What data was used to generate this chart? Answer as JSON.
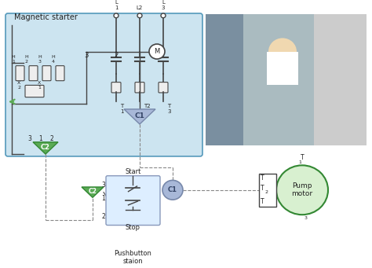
{
  "bg_color": "#ffffff",
  "diagram_bg": "#cce4f0",
  "diagram_label": "Magnetic starter",
  "arrow_color": "#a8b8d8",
  "green_color": "#5aaa55",
  "line_color": "#444444",
  "dashed_color": "#888888",
  "text_color": "#222222",
  "L_labels": [
    "L\n1",
    "L2",
    "L\n3"
  ],
  "T_labels": [
    "T\n1",
    "T2",
    "T\n3"
  ],
  "M_label": "M",
  "C1_label": "C1",
  "C2_label": "C2",
  "motor_label": "Pump\nmotor",
  "start_label": "Start",
  "stop_label": "Stop",
  "pushbutton_label": "Pushbutton\nstaion"
}
